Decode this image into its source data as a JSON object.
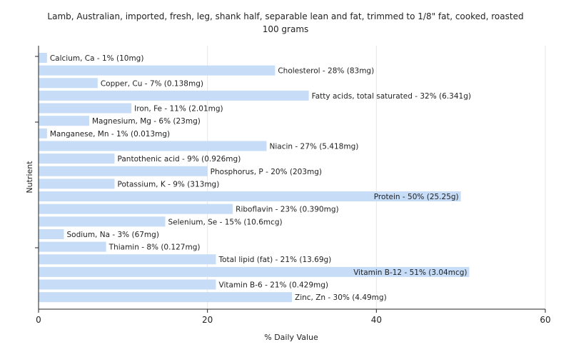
{
  "chart_data": {
    "type": "bar",
    "orientation": "horizontal",
    "title_lines": [
      "Lamb, Australian, imported, fresh, leg, shank half, separable lean and fat, trimmed to 1/8\" fat, cooked, roasted",
      "100 grams"
    ],
    "xlabel": "% Daily Value",
    "ylabel": "Nutrient",
    "xlim": [
      0,
      60
    ],
    "xticks": [
      "0",
      "20",
      "40",
      "60"
    ],
    "grid": true,
    "bar_color": "#c6dcf7",
    "categories": [
      "Calcium, Ca",
      "Cholesterol",
      "Copper, Cu",
      "Fatty acids, total saturated",
      "Iron, Fe",
      "Magnesium, Mg",
      "Manganese, Mn",
      "Niacin",
      "Pantothenic acid",
      "Phosphorus, P",
      "Potassium, K",
      "Protein",
      "Riboflavin",
      "Selenium, Se",
      "Sodium, Na",
      "Thiamin",
      "Total lipid (fat)",
      "Vitamin B-12",
      "Vitamin B-6",
      "Zinc, Zn"
    ],
    "values": [
      1,
      28,
      7,
      32,
      11,
      6,
      1,
      27,
      9,
      20,
      9,
      50,
      23,
      15,
      3,
      8,
      21,
      51,
      21,
      30
    ],
    "labels": [
      "Calcium, Ca - 1% (10mg)",
      "Cholesterol - 28% (83mg)",
      "Copper, Cu - 7% (0.138mg)",
      "Fatty acids, total saturated - 32% (6.341g)",
      "Iron, Fe - 11% (2.01mg)",
      "Magnesium, Mg - 6% (23mg)",
      "Manganese, Mn - 1% (0.013mg)",
      "Niacin - 27% (5.418mg)",
      "Pantothenic acid - 9% (0.926mg)",
      "Phosphorus, P - 20% (203mg)",
      "Potassium, K - 9% (313mg)",
      "Protein - 50% (25.25g)",
      "Riboflavin - 23% (0.390mg)",
      "Selenium, Se - 15% (10.6mcg)",
      "Sodium, Na - 3% (67mg)",
      "Thiamin - 8% (0.127mg)",
      "Total lipid (fat) - 21% (13.69g)",
      "Vitamin B-12 - 51% (3.04mcg)",
      "Vitamin B-6 - 21% (0.429mg)",
      "Zinc, Zn - 30% (4.49mg)"
    ]
  }
}
